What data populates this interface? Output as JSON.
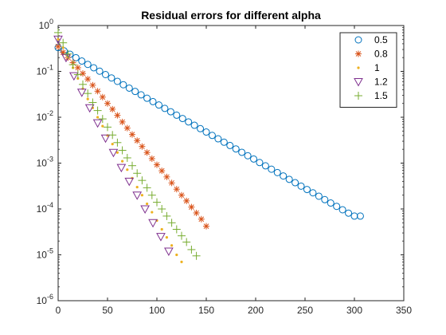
{
  "chart_data": {
    "type": "scatter",
    "title": "Residual errors for different alpha",
    "xlabel": "",
    "ylabel": "",
    "xlim": [
      0,
      350
    ],
    "ylim": [
      1e-06,
      1
    ],
    "yscale": "log",
    "grid": false,
    "legend_position": "top-right",
    "x_ticks": [
      0,
      50,
      100,
      150,
      200,
      250,
      300,
      350
    ],
    "x_tick_labels": [
      "0",
      "50",
      "100",
      "150",
      "200",
      "250",
      "300",
      "350"
    ],
    "y_ticks": [
      1e-06,
      1e-05,
      0.0001,
      0.001,
      0.01,
      0.1,
      1
    ],
    "y_tick_labels": [
      {
        "base": "10",
        "exp": "-6"
      },
      {
        "base": "10",
        "exp": "-5"
      },
      {
        "base": "10",
        "exp": "-4"
      },
      {
        "base": "10",
        "exp": "-3"
      },
      {
        "base": "10",
        "exp": "-2"
      },
      {
        "base": "10",
        "exp": "-1"
      },
      {
        "base": "10",
        "exp": "0"
      }
    ],
    "series": [
      {
        "name": "0.5",
        "marker": "circle",
        "color": "#0072BD",
        "x": [
          0,
          6,
          12,
          18,
          24,
          30,
          36,
          42,
          48,
          54,
          60,
          66,
          72,
          78,
          84,
          90,
          96,
          102,
          108,
          114,
          120,
          126,
          132,
          138,
          144,
          150,
          156,
          162,
          168,
          174,
          180,
          186,
          192,
          198,
          204,
          210,
          216,
          222,
          228,
          234,
          240,
          246,
          252,
          258,
          264,
          270,
          276,
          282,
          288,
          294,
          300,
          306
        ],
        "y": [
          0.33,
          0.28,
          0.236,
          0.199,
          0.168,
          0.142,
          0.12,
          0.101,
          0.0852,
          0.0719,
          0.0607,
          0.0512,
          0.0432,
          0.0365,
          0.0308,
          0.026,
          0.0219,
          0.0185,
          0.0156,
          0.0132,
          0.0111,
          0.00939,
          0.00792,
          0.00669,
          0.00564,
          0.00476,
          0.00402,
          0.00339,
          0.00286,
          0.00242,
          0.00204,
          0.00172,
          0.00145,
          0.00123,
          0.00103,
          0.000873,
          0.000737,
          0.000622,
          0.000525,
          0.000443,
          0.000374,
          0.000315,
          0.000266,
          0.000225,
          0.00019,
          0.00016,
          0.000135,
          0.000114,
          9.62e-05,
          8.12e-05,
          7e-05,
          7e-05
        ]
      },
      {
        "name": "0.8",
        "marker": "asterisk",
        "color": "#D95319",
        "x": [
          0,
          5,
          10,
          15,
          20,
          25,
          30,
          35,
          40,
          45,
          50,
          55,
          60,
          65,
          70,
          75,
          80,
          85,
          90,
          95,
          100,
          105,
          110,
          115,
          120,
          125,
          130,
          135,
          140,
          145,
          150
        ],
        "y": [
          0.35,
          0.26,
          0.2,
          0.155,
          0.12,
          0.09,
          0.068,
          0.05,
          0.037,
          0.0275,
          0.02,
          0.015,
          0.011,
          0.0079,
          0.0058,
          0.0042,
          0.0031,
          0.0023,
          0.0017,
          0.00125,
          0.00092,
          0.00068,
          0.0005,
          0.00037,
          0.00027,
          0.0002,
          0.00015,
          0.00011,
          8.2e-05,
          6e-05,
          4.2e-05
        ]
      },
      {
        "name": "1",
        "marker": "point",
        "color": "#EDB120",
        "x": [
          0,
          5,
          10,
          15,
          20,
          25,
          30,
          35,
          40,
          45,
          50,
          55,
          60,
          65,
          70,
          75,
          80,
          85,
          90,
          95,
          100,
          105,
          110,
          115,
          120,
          125
        ],
        "y": [
          0.5,
          0.33,
          0.2,
          0.12,
          0.07,
          0.042,
          0.025,
          0.016,
          0.01,
          0.0064,
          0.004,
          0.0026,
          0.0017,
          0.0011,
          0.00072,
          0.00047,
          0.0003,
          0.0002,
          0.00013,
          8.5e-05,
          5.6e-05,
          3.6e-05,
          2.4e-05,
          1.6e-05,
          1e-05,
          7e-06
        ]
      },
      {
        "name": "1.2",
        "marker": "triangle-down",
        "color": "#7E2F8E",
        "x": [
          0,
          8,
          16,
          24,
          32,
          40,
          48,
          56,
          64,
          72,
          80,
          88,
          96,
          104,
          112
        ],
        "y": [
          0.5,
          0.2,
          0.08,
          0.035,
          0.016,
          0.0075,
          0.0035,
          0.0017,
          0.0008,
          0.0004,
          0.0002,
          0.0001,
          5e-05,
          2.5e-05,
          1.2e-05
        ]
      },
      {
        "name": "1.5",
        "marker": "plus",
        "color": "#77AC30",
        "x": [
          0,
          5,
          10,
          15,
          20,
          25,
          30,
          35,
          40,
          45,
          50,
          55,
          60,
          65,
          70,
          75,
          80,
          85,
          90,
          95,
          100,
          105,
          110,
          115,
          120,
          125,
          130,
          135,
          140
        ],
        "y": [
          0.7,
          0.42,
          0.24,
          0.14,
          0.085,
          0.052,
          0.033,
          0.021,
          0.014,
          0.0092,
          0.0061,
          0.0041,
          0.0028,
          0.0019,
          0.0013,
          0.00088,
          0.0006,
          0.00042,
          0.00029,
          0.0002,
          0.00014,
          0.0001,
          7e-05,
          5e-05,
          3.6e-05,
          2.6e-05,
          1.9e-05,
          1.3e-05,
          9.5e-06
        ]
      }
    ]
  }
}
